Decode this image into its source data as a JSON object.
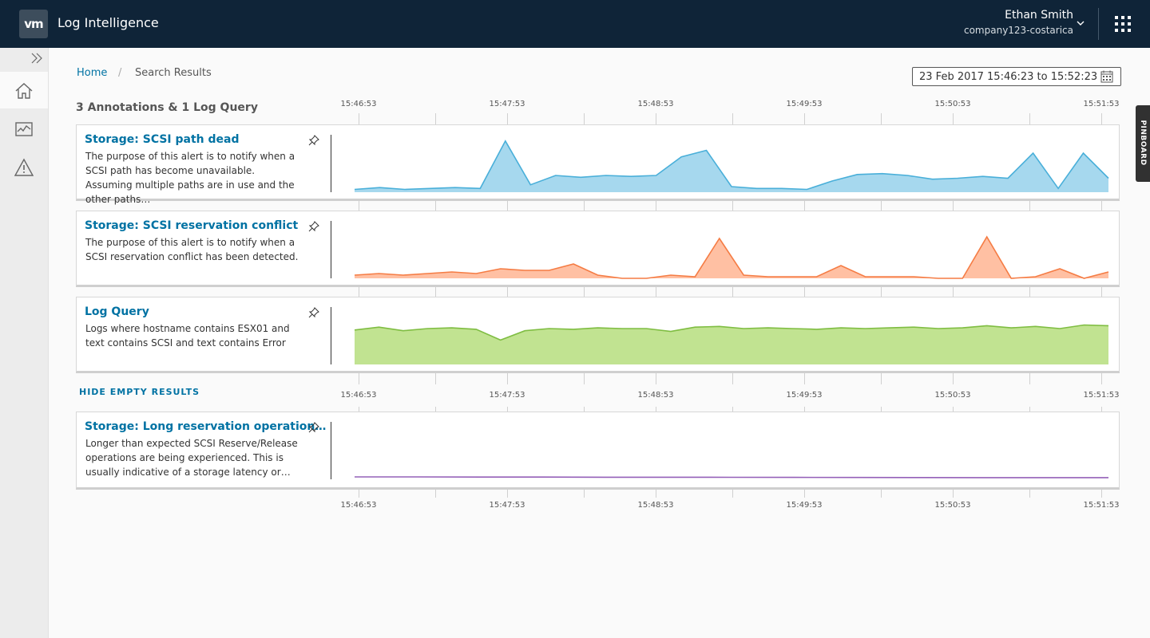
{
  "header": {
    "logo_text": "vm",
    "app_title": "Log Intelligence",
    "user_name": "Ethan Smith",
    "user_org": "company123-costarica",
    "background": "#0f2438"
  },
  "sidebar": {
    "items": [
      {
        "icon": "double-chevron-right-icon",
        "label": ""
      },
      {
        "icon": "home-icon",
        "label": ""
      },
      {
        "icon": "dashboard-chart-icon",
        "label": ""
      },
      {
        "icon": "alert-triangle-icon",
        "label": ""
      }
    ]
  },
  "breadcrumb": {
    "home": "Home",
    "separator": "/",
    "current": "Search Results"
  },
  "date_range": {
    "value": "23 Feb 2017 15:46:23 to 15:52:23",
    "icon": "calendar-icon"
  },
  "results_title": "3 Annotations & 1 Log Query",
  "time_ticks": [
    "15:46:53",
    "15:47:53",
    "15:48:53",
    "15:49:53",
    "15:50:53",
    "15:51:53"
  ],
  "hide_empty_label": "HIDE EMPTY RESULTS",
  "pinboard_label": "PINBOARD",
  "cards": [
    {
      "title": "Storage: SCSI path dead",
      "description": "The purpose of this alert is to notify when a SCSI path has become unavailable. Assuming multiple paths are in use and the other paths…",
      "color": "#49afd9",
      "fill": "#a6d8ee"
    },
    {
      "title": "Storage: SCSI reservation conflict",
      "description": "The purpose of this alert is to notify when a SCSI reservation conflict has been detected.",
      "color": "#f57c44",
      "fill": "#ffc0a3"
    },
    {
      "title": "Log Query",
      "description": "Logs where hostname contains ESX01 and text contains SCSI and text contains Error",
      "color": "#7fbd42",
      "fill": "#c1e391"
    },
    {
      "title": "Storage: Long reservation operation…",
      "description": "Longer than expected SCSI Reserve/Release operations are being experienced. This is usually indicative of a storage latency or…",
      "color": "#9460b8",
      "fill": "none"
    }
  ],
  "chart_data": [
    {
      "type": "area",
      "name": "Storage: SCSI path dead",
      "x_range": [
        "15:46:23",
        "15:52:23"
      ],
      "values": [
        3,
        5,
        3,
        4,
        5,
        4,
        55,
        8,
        18,
        16,
        18,
        17,
        18,
        38,
        45,
        6,
        4,
        4,
        3,
        12,
        19,
        20,
        18,
        14,
        15,
        17,
        15,
        42,
        4,
        42,
        15
      ],
      "ylim": [
        0,
        60
      ]
    },
    {
      "type": "area",
      "name": "Storage: SCSI reservation conflict",
      "x_range": [
        "15:46:23",
        "15:52:23"
      ],
      "values": [
        2,
        3,
        2,
        3,
        4,
        3,
        6,
        5,
        5,
        9,
        2,
        0,
        0,
        2,
        1,
        25,
        2,
        1,
        1,
        1,
        8,
        1,
        1,
        1,
        0,
        0,
        26,
        0,
        1,
        6,
        0,
        4
      ],
      "ylim": [
        0,
        30
      ]
    },
    {
      "type": "area",
      "name": "Log Query",
      "x_range": [
        "15:46:23",
        "15:52:23"
      ],
      "values": [
        48,
        52,
        47,
        50,
        51,
        49,
        34,
        47,
        50,
        49,
        51,
        50,
        50,
        46,
        52,
        53,
        50,
        51,
        50,
        49,
        51,
        50,
        51,
        52,
        50,
        51,
        54,
        51,
        53,
        50,
        55,
        54
      ],
      "ylim": [
        0,
        80
      ]
    },
    {
      "type": "line",
      "name": "Storage: Long reservation operation…",
      "x_range": [
        "15:46:23",
        "15:52:23"
      ],
      "values": [
        1,
        1,
        0.8,
        0.8,
        0.6,
        0.6,
        0.5,
        0.4,
        0.3,
        0.2,
        0.1,
        0.1,
        0.1
      ],
      "ylim": [
        0,
        60
      ]
    }
  ]
}
